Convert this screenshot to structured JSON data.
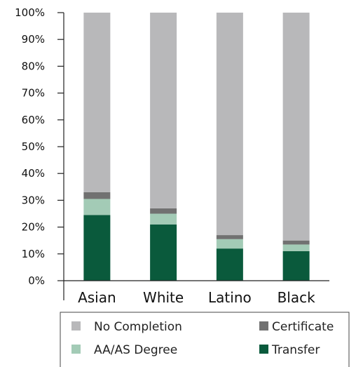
{
  "chart_data": {
    "type": "bar",
    "stacked": true,
    "categories": [
      "Asian",
      "White",
      "Latino",
      "Black"
    ],
    "series": [
      {
        "name": "Transfer",
        "color": "#0a5a3c",
        "values": [
          24.5,
          21,
          12,
          11
        ]
      },
      {
        "name": "AA/AS Degree",
        "color": "#a3cbb6",
        "values": [
          6,
          4,
          3.5,
          2.5
        ]
      },
      {
        "name": "Certificate",
        "color": "#717171",
        "values": [
          2.5,
          2,
          1.5,
          1.5
        ]
      },
      {
        "name": "No Completion",
        "color": "#b8b8ba",
        "values": [
          67,
          73,
          83,
          85
        ]
      }
    ],
    "ylim": [
      0,
      100
    ],
    "yticks": [
      "0%",
      "10%",
      "20%",
      "30%",
      "40%",
      "50%",
      "60%",
      "70%",
      "80%",
      "90%",
      "100%"
    ],
    "grid": false,
    "legend": {
      "position": "bottom",
      "entries": [
        {
          "label": "No Completion",
          "series": "No Completion"
        },
        {
          "label": "Certificate",
          "series": "Certificate"
        },
        {
          "label": "AA/AS Degree",
          "series": "AA/AS Degree"
        },
        {
          "label": "Transfer",
          "series": "Transfer"
        }
      ]
    }
  }
}
